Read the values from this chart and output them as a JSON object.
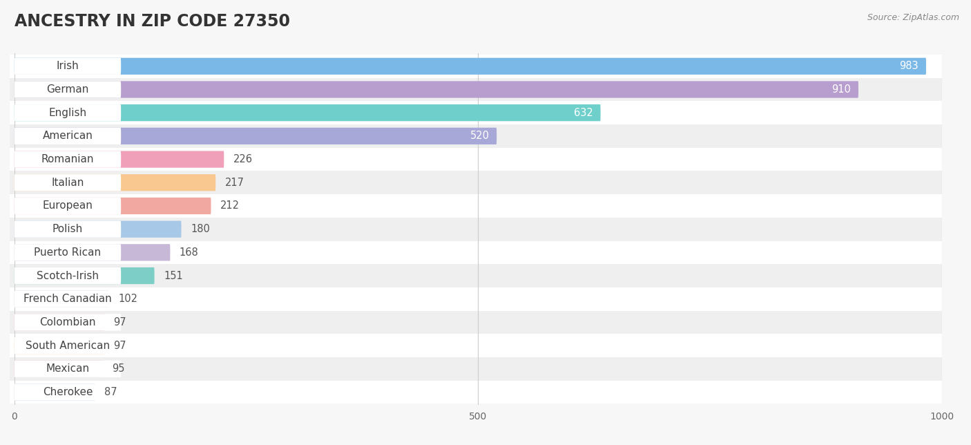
{
  "title": "ANCESTRY IN ZIP CODE 27350",
  "source": "Source: ZipAtlas.com",
  "categories": [
    "Irish",
    "German",
    "English",
    "American",
    "Romanian",
    "Italian",
    "European",
    "Polish",
    "Puerto Rican",
    "Scotch-Irish",
    "French Canadian",
    "Colombian",
    "South American",
    "Mexican",
    "Cherokee"
  ],
  "values": [
    983,
    910,
    632,
    520,
    226,
    217,
    212,
    180,
    168,
    151,
    102,
    97,
    97,
    95,
    87
  ],
  "bar_colors": [
    "#7ab8e8",
    "#b89ece",
    "#6ecfcb",
    "#a8a8d8",
    "#f0a0b8",
    "#f8c890",
    "#f0a8a0",
    "#a8c8e8",
    "#c8b8d8",
    "#7ecec8",
    "#c0c0e8",
    "#f8a8b8",
    "#f8c8a0",
    "#f0b0a8",
    "#a8c8e8"
  ],
  "xlim": [
    0,
    1000
  ],
  "xticks": [
    0,
    500,
    1000
  ],
  "background_color": "#f7f7f7",
  "row_color_even": "#ffffff",
  "row_color_odd": "#efefef",
  "title_fontsize": 17,
  "label_fontsize": 11,
  "value_fontsize": 10.5
}
